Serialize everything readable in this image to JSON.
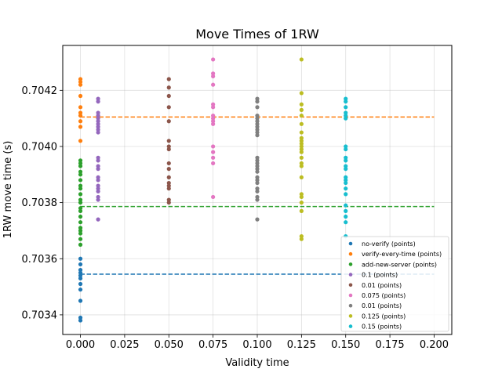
{
  "chart_data": {
    "type": "scatter",
    "title": "Move Times of 1RW",
    "xlabel": "Validity time",
    "ylabel": "1RW move time (s)",
    "xlim": [
      -0.01,
      0.21
    ],
    "ylim": [
      0.70333,
      0.70436
    ],
    "xticks": [
      "0.000",
      "0.025",
      "0.050",
      "0.075",
      "0.100",
      "0.125",
      "0.150",
      "0.175",
      "0.200"
    ],
    "xtick_values": [
      0,
      0.025,
      0.05,
      0.075,
      0.1,
      0.125,
      0.15,
      0.175,
      0.2
    ],
    "yticks": [
      "0.7034",
      "0.7036",
      "0.7038",
      "0.7040",
      "0.7042"
    ],
    "ytick_values": [
      0.7034,
      0.7036,
      0.7038,
      0.704,
      0.7042
    ],
    "grid": true,
    "legend_position": "lower-right",
    "reference_lines": [
      {
        "y": 0.703545,
        "x_range": [
          0,
          0.2
        ],
        "color": "#1f77b4",
        "style": "dashed"
      },
      {
        "y": 0.703786,
        "x_range": [
          0,
          0.2
        ],
        "color": "#2ca02c",
        "style": "dashed"
      },
      {
        "y": 0.704105,
        "x_range": [
          0,
          0.2
        ],
        "color": "#ff7f0e",
        "style": "dashed"
      }
    ],
    "series": [
      {
        "name": "no-verify (points)",
        "color": "#1f77b4",
        "x": 0.0,
        "y": [
          0.70338,
          0.70339,
          0.70345,
          0.70349,
          0.70351,
          0.70353,
          0.70354,
          0.70355,
          0.70356,
          0.70358,
          0.7036
        ]
      },
      {
        "name": "verify-every-time (points)",
        "color": "#ff7f0e",
        "x": 0.0,
        "y": [
          0.70402,
          0.70407,
          0.70409,
          0.70411,
          0.70412,
          0.70414,
          0.70418,
          0.70422,
          0.70423,
          0.70424
        ]
      },
      {
        "name": "add-new-server (points)",
        "color": "#2ca02c",
        "x": 0.0,
        "y": [
          0.70365,
          0.70367,
          0.70369,
          0.7037,
          0.70371,
          0.70373,
          0.70375,
          0.70377,
          0.70378,
          0.7038,
          0.70381,
          0.70383,
          0.70385,
          0.70386,
          0.70388,
          0.7039,
          0.70391,
          0.70393,
          0.70394,
          0.70395
        ]
      },
      {
        "name": "0.1 (points)",
        "color": "#9467bd",
        "x": 0.01,
        "y": [
          0.70374,
          0.70381,
          0.70382,
          0.70384,
          0.70385,
          0.70386,
          0.70388,
          0.70389,
          0.70392,
          0.70393,
          0.70395,
          0.70396,
          0.70405,
          0.70406,
          0.70407,
          0.70408,
          0.70409,
          0.7041,
          0.70411,
          0.70412,
          0.70416,
          0.70417
        ]
      },
      {
        "name": "0.01 (points)",
        "color": "#8c564b",
        "x": 0.05,
        "y": [
          0.7038,
          0.70381,
          0.70385,
          0.70386,
          0.70387,
          0.70389,
          0.70392,
          0.70394,
          0.70399,
          0.704,
          0.70402,
          0.70409,
          0.70414,
          0.70418,
          0.70421,
          0.70424
        ]
      },
      {
        "name": "0.075 (points)",
        "color": "#e377c2",
        "x": 0.075,
        "y": [
          0.70382,
          0.70394,
          0.70396,
          0.70398,
          0.704,
          0.70408,
          0.70409,
          0.7041,
          0.70411,
          0.70414,
          0.70415,
          0.70422,
          0.70425,
          0.70426,
          0.70431
        ]
      },
      {
        "name": "0.01 (points)",
        "color": "#7f7f7f",
        "x": 0.1,
        "y": [
          0.70374,
          0.70381,
          0.70382,
          0.70384,
          0.70385,
          0.70387,
          0.70388,
          0.70389,
          0.70391,
          0.70392,
          0.70393,
          0.70394,
          0.70395,
          0.70396,
          0.70404,
          0.70405,
          0.70406,
          0.70407,
          0.70408,
          0.70409,
          0.7041,
          0.70411,
          0.70414,
          0.70416,
          0.70417
        ]
      },
      {
        "name": "0.125 (points)",
        "color": "#bcbd22",
        "x": 0.125,
        "y": [
          0.70367,
          0.70368,
          0.70377,
          0.7038,
          0.70382,
          0.70383,
          0.70389,
          0.70393,
          0.70394,
          0.70396,
          0.70398,
          0.70399,
          0.704,
          0.70401,
          0.70402,
          0.70403,
          0.70405,
          0.70408,
          0.70411,
          0.70413,
          0.70415,
          0.70419,
          0.70431
        ]
      },
      {
        "name": "0.15 (points)",
        "color": "#17becf",
        "x": 0.15,
        "y": [
          0.70368,
          0.70373,
          0.70375,
          0.70377,
          0.70379,
          0.70383,
          0.70385,
          0.70387,
          0.70388,
          0.70389,
          0.70392,
          0.70393,
          0.70395,
          0.70396,
          0.70399,
          0.704,
          0.7041,
          0.70411,
          0.70412,
          0.70414,
          0.70416,
          0.70417
        ]
      }
    ]
  }
}
